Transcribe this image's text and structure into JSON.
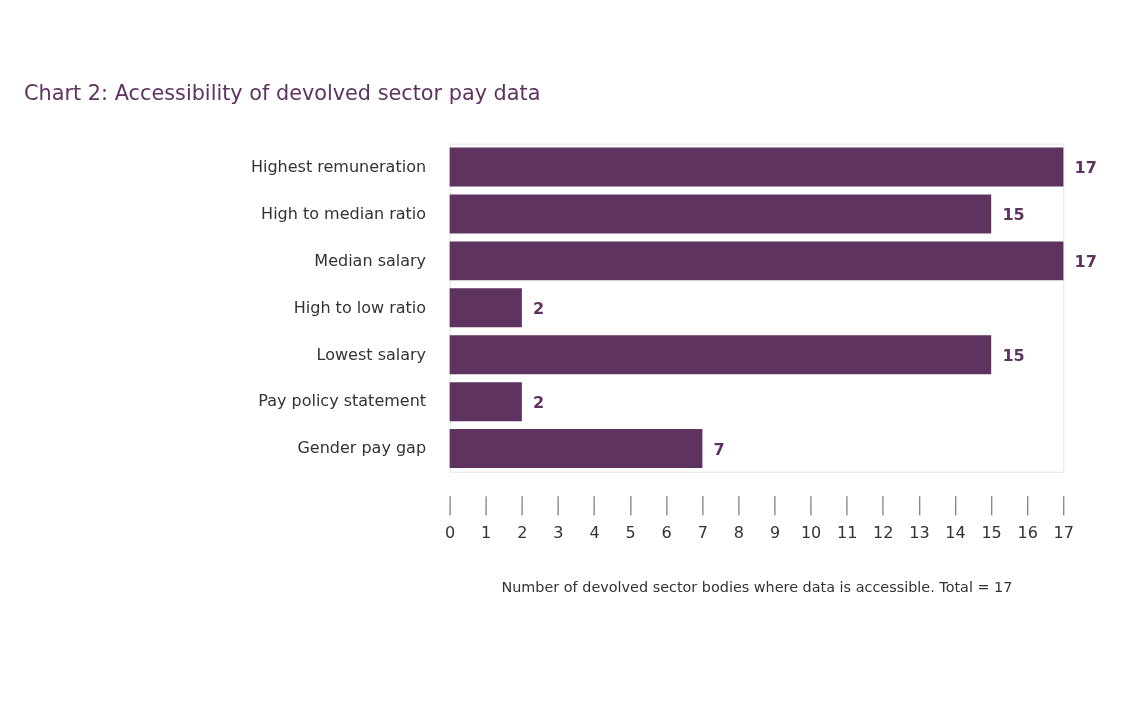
{
  "chart_data": {
    "type": "bar",
    "orientation": "horizontal",
    "title": "Chart 2: Accessibility of devolved sector pay data",
    "xlabel": "Number of devolved sector bodies where data is accessible. Total = 17",
    "categories": [
      "Highest remuneration",
      "High to median ratio",
      "Median salary",
      "High to low ratio",
      "Lowest salary",
      "Pay policy statement",
      "Gender pay gap"
    ],
    "values": [
      17,
      15,
      17,
      2,
      15,
      2,
      7
    ],
    "color": "#5e3360",
    "xlim": [
      0,
      17
    ],
    "xticks": [
      0,
      1,
      2,
      3,
      4,
      5,
      6,
      7,
      8,
      9,
      10,
      11,
      12,
      13,
      14,
      15,
      16,
      17
    ],
    "data_labels": true,
    "grid": false
  }
}
